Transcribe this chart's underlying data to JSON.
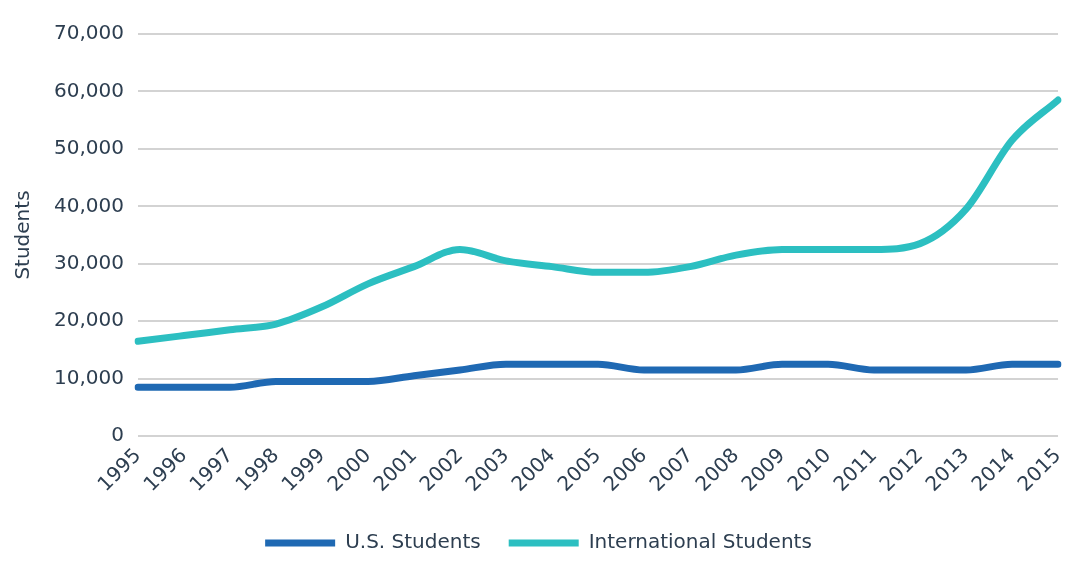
{
  "chart_data": {
    "type": "line",
    "ylabel": "Students",
    "categories": [
      "1995",
      "1996",
      "1997",
      "1998",
      "1999",
      "2000",
      "2001",
      "2002",
      "2003",
      "2004",
      "2005",
      "2006",
      "2007",
      "2008",
      "2009",
      "2010",
      "2011",
      "2012",
      "2013",
      "2014",
      "2015"
    ],
    "series": [
      {
        "name": "U.S. Students",
        "color": "#1f69b3",
        "values": [
          8500,
          8500,
          8500,
          9500,
          9500,
          9500,
          10500,
          11500,
          12500,
          12500,
          12500,
          11500,
          11500,
          11500,
          12500,
          12500,
          11500,
          11500,
          11500,
          12500,
          12500
        ]
      },
      {
        "name": "International Students",
        "color": "#2cbfc1",
        "values": [
          16500,
          17500,
          18500,
          19500,
          22500,
          26500,
          29500,
          32500,
          30500,
          29500,
          28500,
          28500,
          29500,
          31500,
          32500,
          32500,
          32500,
          33500,
          39500,
          51500,
          58500
        ]
      }
    ],
    "ylim": [
      0,
      70000
    ],
    "yticks": [
      0,
      {
        "value": 10000,
        "label": "10,000"
      },
      {
        "value": 20000,
        "label": "20,000"
      },
      {
        "value": 30000,
        "label": "30,000"
      },
      {
        "value": 40000,
        "label": "40,000"
      },
      {
        "value": 50000,
        "label": "50,000"
      },
      {
        "value": 60000,
        "label": "60,000"
      },
      {
        "value": 70000,
        "label": "70,000"
      }
    ],
    "grid": "y",
    "legend": "bottom",
    "marker": "none",
    "line_style": "solid"
  }
}
